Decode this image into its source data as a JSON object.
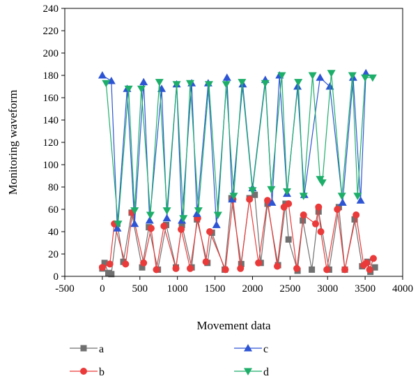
{
  "chart_data": {
    "type": "line",
    "xlabel": "Movement data",
    "ylabel": "Monitoring waveform",
    "xlim": [
      -500,
      4000
    ],
    "ylim": [
      0,
      240
    ],
    "xticks": [
      -500,
      0,
      500,
      1000,
      1500,
      2000,
      2500,
      3000,
      3500,
      4000
    ],
    "yticks": [
      0,
      20,
      40,
      60,
      80,
      100,
      120,
      140,
      160,
      180,
      200,
      220,
      240
    ],
    "grid": false,
    "legend_position": "bottom",
    "series": [
      {
        "name": "a",
        "color": "#707070",
        "marker": "square",
        "x": [
          0,
          30,
          80,
          120,
          200,
          280,
          390,
          530,
          620,
          740,
          850,
          980,
          1060,
          1190,
          1260,
          1400,
          1460,
          1630,
          1720,
          1850,
          1960,
          2030,
          2110,
          2200,
          2340,
          2440,
          2480,
          2600,
          2670,
          2790,
          2880,
          3020,
          3150,
          3230,
          3360,
          3460,
          3530,
          3570,
          3630
        ],
        "y": [
          7,
          12,
          3,
          2,
          47,
          13,
          57,
          8,
          44,
          6,
          46,
          8,
          46,
          8,
          51,
          12,
          39,
          6,
          70,
          11,
          70,
          73,
          12,
          65,
          10,
          65,
          33,
          5,
          50,
          6,
          58,
          6,
          62,
          6,
          51,
          9,
          13,
          4,
          8
        ]
      },
      {
        "name": "b",
        "color": "#ea3a3a",
        "marker": "circle",
        "x": [
          0,
          100,
          160,
          310,
          400,
          550,
          650,
          720,
          820,
          980,
          1050,
          1170,
          1270,
          1380,
          1430,
          1640,
          1740,
          1840,
          1960,
          2080,
          2200,
          2330,
          2420,
          2480,
          2590,
          2680,
          2840,
          2880,
          2910,
          2990,
          3130,
          3230,
          3380,
          3480,
          3520,
          3560,
          3610
        ],
        "y": [
          8,
          11,
          47,
          11,
          57,
          12,
          43,
          6,
          45,
          7,
          42,
          7,
          52,
          13,
          40,
          6,
          69,
          7,
          69,
          12,
          68,
          9,
          62,
          65,
          7,
          55,
          47,
          62,
          40,
          6,
          60,
          6,
          55,
          10,
          12,
          6,
          16
        ]
      },
      {
        "name": "c",
        "color": "#2d54d4",
        "marker": "triangle-up",
        "x": [
          0,
          120,
          200,
          330,
          430,
          550,
          630,
          790,
          860,
          990,
          1060,
          1190,
          1260,
          1410,
          1520,
          1660,
          1730,
          1870,
          2000,
          2170,
          2260,
          2360,
          2460,
          2600,
          2690,
          2900,
          3030,
          3200,
          3340,
          3440,
          3510
        ],
        "y": [
          180,
          175,
          43,
          168,
          47,
          174,
          50,
          168,
          52,
          172,
          50,
          173,
          56,
          173,
          46,
          178,
          69,
          172,
          79,
          176,
          66,
          180,
          74,
          170,
          73,
          178,
          170,
          66,
          178,
          68,
          182
        ]
      },
      {
        "name": "d",
        "color": "#1dae6a",
        "marker": "triangle-down",
        "x": [
          50,
          210,
          350,
          430,
          520,
          640,
          760,
          860,
          990,
          1080,
          1170,
          1280,
          1420,
          1540,
          1650,
          1750,
          1860,
          2000,
          2170,
          2250,
          2390,
          2460,
          2610,
          2680,
          2800,
          2900,
          2930,
          3050,
          3190,
          3330,
          3400,
          3500,
          3600
        ],
        "y": [
          173,
          47,
          168,
          59,
          168,
          55,
          174,
          59,
          172,
          52,
          173,
          59,
          172,
          55,
          172,
          72,
          174,
          77,
          173,
          78,
          180,
          76,
          174,
          72,
          180,
          87,
          84,
          182,
          72,
          180,
          72,
          178,
          178
        ]
      }
    ]
  }
}
